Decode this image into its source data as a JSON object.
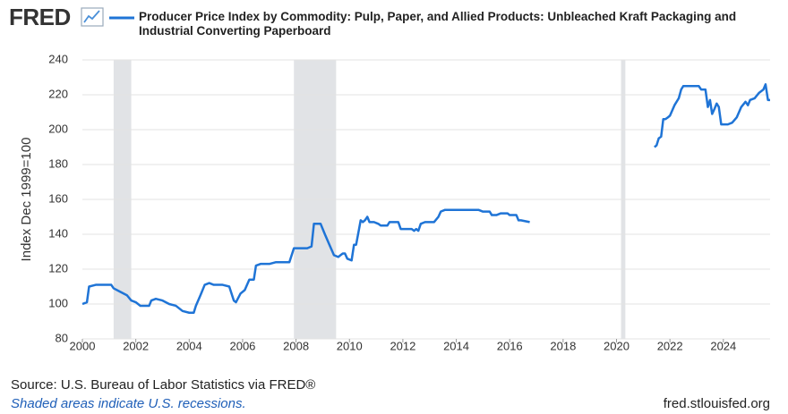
{
  "logo": "FRED",
  "source": "Source: U.S. Bureau of Labor Statistics via FRED®",
  "note": "Shaded areas indicate U.S. recessions.",
  "website": "fred.stlouisfed.org",
  "chart_data": {
    "type": "line",
    "ylabel": "Index Dec 1999=100",
    "xlim": [
      2000,
      2025.75
    ],
    "xticks": [
      2000,
      2002,
      2004,
      2006,
      2008,
      2010,
      2012,
      2014,
      2016,
      2018,
      2020,
      2022,
      2024
    ],
    "ylim": [
      80,
      240
    ],
    "yticks": [
      80,
      100,
      120,
      140,
      160,
      180,
      200,
      220,
      240
    ],
    "grid": true,
    "recessions": [
      [
        2001.17,
        2001.83
      ],
      [
        2007.92,
        2009.5
      ],
      [
        2020.17,
        2020.33
      ]
    ],
    "recession_color": "#e1e3e6",
    "x": [
      2000.0,
      2000.17,
      2000.25,
      2000.5,
      2001.0,
      2001.08,
      2001.17,
      2001.42,
      2001.67,
      2001.83,
      2002.0,
      2002.17,
      2002.5,
      2002.58,
      2002.75,
      2003.0,
      2003.25,
      2003.5,
      2003.75,
      2004.0,
      2004.17,
      2004.25,
      2004.42,
      2004.58,
      2004.75,
      2004.92,
      2005.25,
      2005.5,
      2005.67,
      2005.75,
      2005.92,
      2006.08,
      2006.25,
      2006.42,
      2006.5,
      2006.67,
      2007.0,
      2007.25,
      2007.5,
      2007.75,
      2007.92,
      2008.17,
      2008.42,
      2008.58,
      2008.67,
      2008.92,
      2009.08,
      2009.25,
      2009.42,
      2009.58,
      2009.75,
      2009.83,
      2009.92,
      2010.08,
      2010.17,
      2010.25,
      2010.42,
      2010.5,
      2010.58,
      2010.67,
      2010.75,
      2010.92,
      2011.08,
      2011.17,
      2011.42,
      2011.5,
      2011.67,
      2011.83,
      2011.92,
      2012.08,
      2012.33,
      2012.42,
      2012.5,
      2012.58,
      2012.67,
      2012.83,
      2013.17,
      2013.33,
      2013.42,
      2013.58,
      2013.75,
      2014.08,
      2014.25,
      2014.67,
      2014.83,
      2015.0,
      2015.25,
      2015.33,
      2015.5,
      2015.67,
      2015.92,
      2016.0,
      2016.25,
      2016.33,
      2016.42,
      2016.75,
      2019.0,
      2021.42,
      2021.5,
      2021.58,
      2021.67,
      2021.75,
      2021.83,
      2021.92,
      2022.0,
      2022.17,
      2022.33,
      2022.42,
      2022.5,
      2022.75,
      2023.08,
      2023.17,
      2023.33,
      2023.42,
      2023.5,
      2023.58,
      2023.67,
      2023.75,
      2023.83,
      2023.92,
      2024.17,
      2024.33,
      2024.5,
      2024.67,
      2024.83,
      2024.92,
      2025.0,
      2025.17,
      2025.33,
      2025.5,
      2025.58,
      2025.67,
      2025.75
    ],
    "series": [
      {
        "name": "Producer Price Index by Commodity: Pulp, Paper, and Allied Products: Unbleached Kraft Packaging and Industrial Converting Paperboard",
        "color": "#1f74d6",
        "values": [
          100,
          101,
          110,
          111,
          111,
          111,
          109,
          107,
          105,
          102,
          101,
          99,
          99,
          102,
          103,
          102,
          100,
          99,
          96,
          95,
          95,
          99,
          105,
          111,
          112,
          111,
          111,
          110,
          102,
          101,
          106,
          108,
          114,
          114,
          122,
          123,
          123,
          124,
          124,
          124,
          132,
          132,
          132,
          133,
          146,
          146,
          140,
          134,
          128,
          127,
          129,
          129,
          126,
          125,
          134,
          134,
          148,
          147,
          148,
          150,
          147,
          147,
          146,
          145,
          145,
          147,
          147,
          147,
          143,
          143,
          143,
          142,
          143,
          142,
          146,
          147,
          147,
          150,
          153,
          154,
          154,
          154,
          154,
          154,
          154,
          153,
          153,
          151,
          151,
          152,
          152,
          151,
          151,
          148,
          148,
          147,
          null,
          190,
          191,
          195,
          196,
          206,
          206,
          207,
          208,
          214,
          218,
          223,
          225,
          225,
          225,
          223,
          223,
          213,
          217,
          209,
          212,
          215,
          213,
          203,
          203,
          204,
          207,
          213,
          216,
          214,
          217,
          218,
          221,
          223,
          226,
          217,
          217
        ]
      }
    ]
  }
}
